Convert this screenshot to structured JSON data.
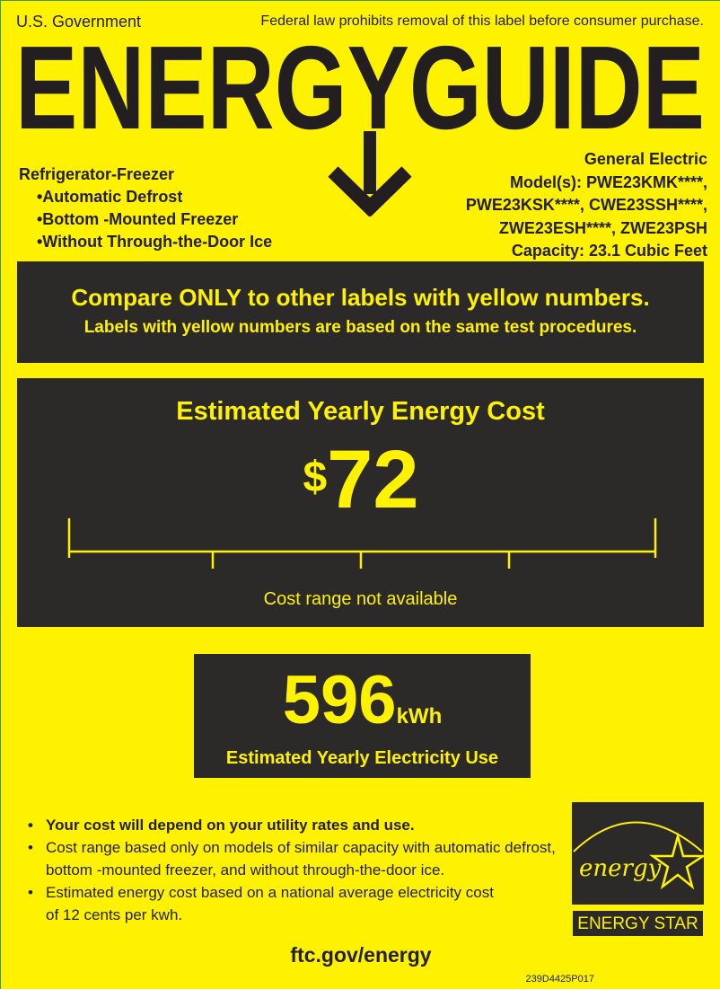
{
  "header": {
    "government": "U.S. Government",
    "law_notice": "Federal law prohibits removal of this label before consumer purchase.",
    "title": "ENERGYGUIDE"
  },
  "product": {
    "type": "Refrigerator-Freezer",
    "features": [
      "•Automatic Defrost",
      "•Bottom -Mounted Freezer",
      "•Without  Through-the-Door Ice"
    ]
  },
  "manufacturer": {
    "name": "General Electric",
    "models": [
      "Model(s): PWE23KMK****,",
      "PWE23KSK****, CWE23SSH****,",
      "ZWE23ESH****, ZWE23PSH"
    ],
    "capacity": "Capacity: 23.1 Cubic Feet"
  },
  "compare": {
    "line1": "Compare ONLY to other labels with yellow numbers.",
    "line2": "Labels with yellow numbers are based on the same test procedures."
  },
  "cost": {
    "heading": "Estimated Yearly Energy Cost",
    "currency": "$",
    "value": "72",
    "range_note": "Cost range not available"
  },
  "electricity": {
    "value": "596",
    "unit": "kWh",
    "label": "Estimated Yearly Electricity Use"
  },
  "notes": [
    "Your cost will depend on your utility rates and use.",
    "Cost range based only on models of similar capacity with automatic defrost, bottom -mounted freezer, and without through-the-door ice.",
    "Estimated energy cost based on a national average electricity cost of 12 cents per kwh."
  ],
  "logo": {
    "script": "energy",
    "text": "ENERGY STAR"
  },
  "footer": {
    "url": "ftc.gov/energy",
    "code": "239D4425P017"
  },
  "colors": {
    "label_yellow": "#fff200",
    "panel_dark": "#2b2a29"
  }
}
